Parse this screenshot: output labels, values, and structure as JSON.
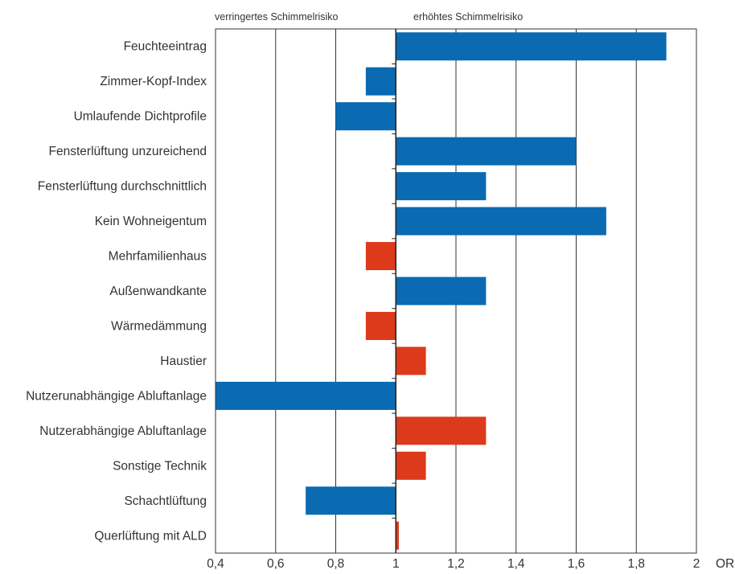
{
  "chart_data": {
    "type": "bar",
    "orientation": "horizontal",
    "header_left": "verringertes Schimmelrisiko",
    "header_right": "erhöhtes Schimmelrisiko",
    "xunit": "OR",
    "xlim": [
      0.4,
      2.0
    ],
    "xticks": [
      "0,4",
      "0,6",
      "0,8",
      "1",
      "1,2",
      "1,4",
      "1,6",
      "1,8",
      "2"
    ],
    "baseline": 1.0,
    "colors": {
      "blue": "#0a6ab2",
      "red": "#dd3a1b"
    },
    "categories": [
      "Feuchteeintrag",
      "Zimmer-Kopf-Index",
      "Umlaufende Dichtprofile",
      "Fensterlüftung unzureichend",
      "Fensterlüftung durchschnittlich",
      "Kein Wohneigentum",
      "Mehrfamilienhaus",
      "Außenwandkante",
      "Wärmedämmung",
      "Haustier",
      "Nutzerunabhängige Abluftanlage",
      "Nutzerabhängige Abluftanlage",
      "Sonstige Technik",
      "Schachtlüftung",
      "Querlüftung mit ALD"
    ],
    "values": [
      1.9,
      0.9,
      0.8,
      1.6,
      1.3,
      1.7,
      0.9,
      1.3,
      0.9,
      1.1,
      0.4,
      1.3,
      1.1,
      0.7,
      1.01
    ],
    "bar_colors": [
      "blue",
      "blue",
      "blue",
      "blue",
      "blue",
      "blue",
      "red",
      "blue",
      "red",
      "red",
      "blue",
      "red",
      "red",
      "blue",
      "red"
    ]
  }
}
